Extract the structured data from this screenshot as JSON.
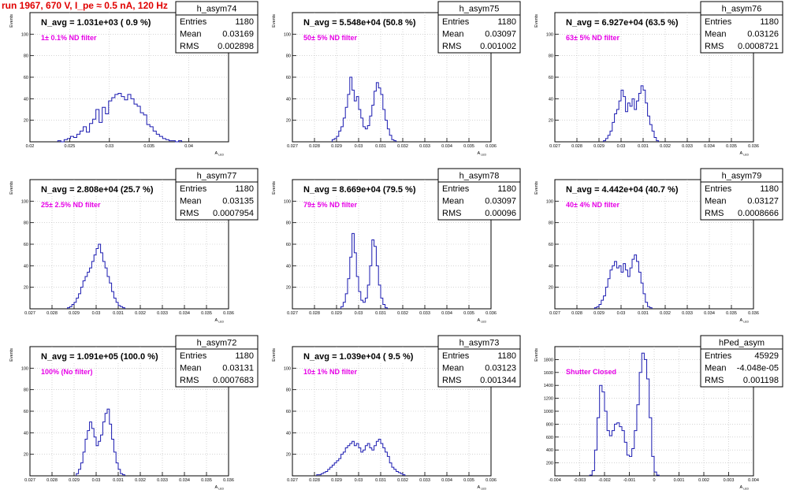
{
  "run_title": "run 1967,   670 V, I_pe ≈ 0.5 nA, 120 Hz",
  "colors": {
    "hist_line": "#1a1ab0",
    "annotation": "#e600e6",
    "run_title": "#e00000",
    "grid": "#bbbbbb"
  },
  "stats_labels": {
    "entries": "Entries",
    "mean": "Mean",
    "rms": "RMS"
  },
  "chart_data": [
    {
      "type": "histogram",
      "name": "h_asym74",
      "title": "N_avg = 1.031e+03 ( 0.9 %)",
      "annotation": "1± 0.1% ND filter",
      "ylabel": "Events",
      "xlabel": "A_LED",
      "xlim": [
        0.02,
        0.045
      ],
      "ylim": [
        0,
        120
      ],
      "xticks": [
        0.02,
        0.025,
        0.03,
        0.035,
        0.04
      ],
      "xtick_labels": [
        "0.02",
        "0.025",
        "0.03",
        "0.035",
        "0.04"
      ],
      "yticks": [
        20,
        40,
        60,
        80,
        100
      ],
      "grid": true,
      "stats": {
        "entries": "1180",
        "mean": "0.03169",
        "rms": "0.002898"
      },
      "bins": {
        "start": 0.0235,
        "width": 0.0004,
        "counts": [
          1,
          0,
          2,
          3,
          5,
          4,
          7,
          10,
          14,
          9,
          17,
          21,
          30,
          18,
          32,
          26,
          38,
          41,
          44,
          45,
          42,
          39,
          44,
          40,
          35,
          33,
          27,
          25,
          16,
          14,
          10,
          7,
          5,
          3,
          2,
          1,
          1,
          0,
          1
        ]
      }
    },
    {
      "type": "histogram",
      "name": "h_asym75",
      "title": "N_avg = 5.548e+04 (50.8 %)",
      "annotation": "50± 5% ND filter",
      "ylabel": "Events",
      "xlabel": "A_LED",
      "xlim": [
        0.027,
        0.036
      ],
      "ylim": [
        0,
        120
      ],
      "xticks": [
        0.027,
        0.028,
        0.029,
        0.03,
        0.031,
        0.032,
        0.033,
        0.034,
        0.035,
        0.036
      ],
      "xtick_labels": [
        "0.027",
        "0.028",
        "0.029",
        "0.03",
        "0.031",
        "0.032",
        "0.033",
        "0.034",
        "0.035",
        "0.036"
      ],
      "yticks": [
        20,
        40,
        60,
        80,
        100
      ],
      "grid": true,
      "stats": {
        "entries": "1180",
        "mean": "0.03097",
        "rms": "0.001002"
      },
      "bins": {
        "start": 0.0288,
        "width": 0.0001,
        "counts": [
          2,
          3,
          5,
          10,
          14,
          22,
          32,
          44,
          60,
          48,
          38,
          42,
          30,
          22,
          14,
          12,
          15,
          24,
          34,
          47,
          55,
          50,
          44,
          30,
          20,
          12,
          6,
          2,
          1
        ]
      }
    },
    {
      "type": "histogram",
      "name": "h_asym76",
      "title": "N_avg = 6.927e+04 (63.5 %)",
      "annotation": "63± 5% ND filter",
      "ylabel": "Events",
      "xlabel": "A_LED",
      "xlim": [
        0.027,
        0.036
      ],
      "ylim": [
        0,
        120
      ],
      "xticks": [
        0.027,
        0.028,
        0.029,
        0.03,
        0.031,
        0.032,
        0.033,
        0.034,
        0.035,
        0.036
      ],
      "xtick_labels": [
        "0.027",
        "0.028",
        "0.029",
        "0.03",
        "0.031",
        "0.032",
        "0.033",
        "0.034",
        "0.035",
        "0.036"
      ],
      "yticks": [
        20,
        40,
        60,
        80,
        100
      ],
      "grid": true,
      "stats": {
        "entries": "1180",
        "mean": "0.03126",
        "rms": "0.0008721"
      },
      "bins": {
        "start": 0.0292,
        "width": 0.0001,
        "counts": [
          1,
          3,
          6,
          10,
          18,
          26,
          30,
          38,
          48,
          42,
          28,
          36,
          33,
          40,
          30,
          38,
          45,
          52,
          48,
          36,
          24,
          16,
          10,
          4,
          1
        ]
      }
    },
    {
      "type": "histogram",
      "name": "h_asym77",
      "title": "N_avg = 2.808e+04 (25.7 %)",
      "annotation": "25± 2.5% ND filter",
      "ylabel": "Events",
      "xlabel": "A_LED",
      "xlim": [
        0.027,
        0.036
      ],
      "ylim": [
        0,
        120
      ],
      "xticks": [
        0.027,
        0.028,
        0.029,
        0.03,
        0.031,
        0.032,
        0.033,
        0.034,
        0.035,
        0.036
      ],
      "xtick_labels": [
        "0.027",
        "0.028",
        "0.029",
        "0.03",
        "0.031",
        "0.032",
        "0.033",
        "0.034",
        "0.035",
        "0.036"
      ],
      "yticks": [
        20,
        40,
        60,
        80,
        100
      ],
      "grid": true,
      "stats": {
        "entries": "1180",
        "mean": "0.03135",
        "rms": "0.0007954"
      },
      "bins": {
        "start": 0.0287,
        "width": 0.0001,
        "counts": [
          1,
          2,
          4,
          6,
          10,
          14,
          20,
          26,
          30,
          34,
          38,
          44,
          50,
          56,
          60,
          52,
          44,
          38,
          30,
          24,
          16,
          10,
          6,
          3,
          2,
          1
        ]
      }
    },
    {
      "type": "histogram",
      "name": "h_asym78",
      "title": "N_avg = 8.669e+04 (79.5 %)",
      "annotation": "79± 5% ND filter",
      "ylabel": "Events",
      "xlabel": "A_LED",
      "xlim": [
        0.027,
        0.036
      ],
      "ylim": [
        0,
        120
      ],
      "xticks": [
        0.027,
        0.028,
        0.029,
        0.03,
        0.031,
        0.032,
        0.033,
        0.034,
        0.035,
        0.036
      ],
      "xtick_labels": [
        "0.027",
        "0.028",
        "0.029",
        "0.03",
        "0.031",
        "0.032",
        "0.033",
        "0.034",
        "0.035",
        "0.036"
      ],
      "yticks": [
        20,
        40,
        60,
        80,
        100
      ],
      "grid": true,
      "stats": {
        "entries": "1180",
        "mean": "0.03097",
        "rms": "0.00096"
      },
      "bins": {
        "start": 0.0292,
        "width": 0.0001,
        "counts": [
          2,
          6,
          14,
          28,
          48,
          70,
          52,
          30,
          16,
          8,
          6,
          10,
          22,
          40,
          64,
          58,
          40,
          22,
          10,
          4,
          1
        ]
      }
    },
    {
      "type": "histogram",
      "name": "h_asym79",
      "title": "N_avg = 4.442e+04 (40.7 %)",
      "annotation": "40± 4% ND filter",
      "ylabel": "Events",
      "xlabel": "A_LED",
      "xlim": [
        0.027,
        0.036
      ],
      "ylim": [
        0,
        120
      ],
      "xticks": [
        0.027,
        0.028,
        0.029,
        0.03,
        0.031,
        0.032,
        0.033,
        0.034,
        0.035,
        0.036
      ],
      "xtick_labels": [
        "0.027",
        "0.028",
        "0.029",
        "0.03",
        "0.031",
        "0.032",
        "0.033",
        "0.034",
        "0.035",
        "0.036"
      ],
      "yticks": [
        20,
        40,
        60,
        80,
        100
      ],
      "grid": true,
      "stats": {
        "entries": "1180",
        "mean": "0.03127",
        "rms": "0.0008666"
      },
      "bins": {
        "start": 0.0288,
        "width": 0.0001,
        "counts": [
          1,
          2,
          4,
          8,
          12,
          20,
          28,
          36,
          40,
          44,
          38,
          40,
          34,
          42,
          36,
          30,
          38,
          46,
          50,
          44,
          34,
          24,
          14,
          6,
          2,
          1
        ]
      }
    },
    {
      "type": "histogram",
      "name": "h_asym72",
      "title": "N_avg = 1.091e+05 (100.0 %)",
      "annotation": "100% (No filter)",
      "ylabel": "Events",
      "xlabel": "A_LED",
      "xlim": [
        0.027,
        0.036
      ],
      "ylim": [
        0,
        120
      ],
      "xticks": [
        0.027,
        0.028,
        0.029,
        0.03,
        0.031,
        0.032,
        0.033,
        0.034,
        0.035,
        0.036
      ],
      "xtick_labels": [
        "0.027",
        "0.028",
        "0.029",
        "0.03",
        "0.031",
        "0.032",
        "0.033",
        "0.034",
        "0.035",
        "0.036"
      ],
      "yticks": [
        20,
        40,
        60,
        80,
        100
      ],
      "grid": true,
      "stats": {
        "entries": "1180",
        "mean": "0.03131",
        "rms": "0.0007683"
      },
      "bins": {
        "start": 0.0291,
        "width": 0.0001,
        "counts": [
          2,
          6,
          12,
          22,
          34,
          42,
          50,
          44,
          36,
          28,
          32,
          38,
          50,
          58,
          62,
          48,
          34,
          22,
          12,
          6,
          2,
          1
        ]
      }
    },
    {
      "type": "histogram",
      "name": "h_asym73",
      "title": "N_avg = 1.039e+04 ( 9.5 %)",
      "annotation": "10± 1% ND filter",
      "ylabel": "Events",
      "xlabel": "A_LED",
      "xlim": [
        0.027,
        0.036
      ],
      "ylim": [
        0,
        120
      ],
      "xticks": [
        0.027,
        0.028,
        0.029,
        0.03,
        0.031,
        0.032,
        0.033,
        0.034,
        0.035,
        0.036
      ],
      "xtick_labels": [
        "0.027",
        "0.028",
        "0.029",
        "0.03",
        "0.031",
        "0.032",
        "0.033",
        "0.034",
        "0.035",
        "0.036"
      ],
      "yticks": [
        20,
        40,
        60,
        80,
        100
      ],
      "grid": true,
      "stats": {
        "entries": "1180",
        "mean": "0.03123",
        "rms": "0.001344"
      },
      "bins": {
        "start": 0.0281,
        "width": 0.0001,
        "counts": [
          1,
          1,
          2,
          3,
          4,
          6,
          8,
          10,
          12,
          14,
          16,
          20,
          22,
          26,
          28,
          30,
          32,
          28,
          30,
          26,
          22,
          24,
          28,
          30,
          26,
          24,
          28,
          32,
          34,
          30,
          26,
          22,
          18,
          12,
          8,
          6,
          4,
          3,
          2,
          1
        ]
      }
    },
    {
      "type": "histogram",
      "name": "hPed_asym",
      "title": "",
      "annotation": "Shutter Closed",
      "ylabel": "Events",
      "xlabel": "A_LED",
      "xlim": [
        -0.004,
        0.004
      ],
      "ylim": [
        0,
        2000
      ],
      "xticks": [
        -0.004,
        -0.003,
        -0.002,
        -0.001,
        0,
        0.001,
        0.002,
        0.003,
        0.004
      ],
      "xtick_labels": [
        "-0.004",
        "-0.003",
        "-0.002",
        "-0.001",
        "0",
        "0.001",
        "0.002",
        "0.003",
        "0.004"
      ],
      "yticks": [
        200,
        400,
        600,
        800,
        1000,
        1200,
        1400,
        1600,
        1800
      ],
      "grid": true,
      "stats": {
        "entries": "45929",
        "mean": "-4.048e-05",
        "rms": "0.001198"
      },
      "bins": {
        "start": -0.0026,
        "width": 0.0001,
        "counts": [
          10,
          80,
          400,
          900,
          1400,
          1300,
          1000,
          700,
          620,
          700,
          800,
          820,
          760,
          700,
          520,
          320,
          300,
          420,
          700,
          1100,
          1600,
          1900,
          1800,
          1500,
          900,
          300,
          60,
          10
        ]
      }
    }
  ]
}
